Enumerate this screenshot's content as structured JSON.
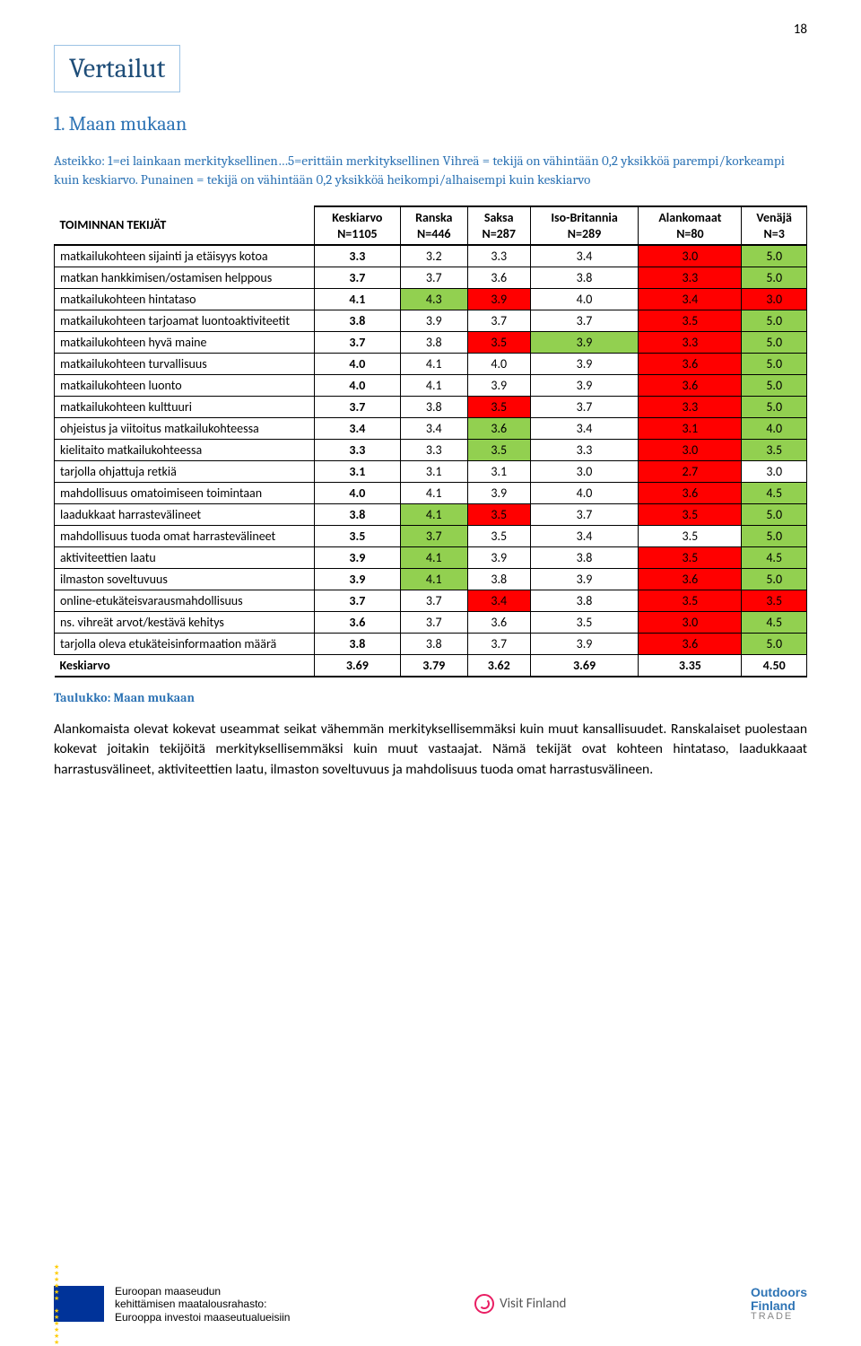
{
  "page_number": "18",
  "heading_boxed": "Vertailut",
  "subheading": "1. Maan mukaan",
  "scale_note": "Asteikko: 1=ei lainkaan merkityksellinen…5=erittäin merkityksellinen Vihreä = tekijä on vähintään 0,2 yksikköä parempi/korkeampi kuin keskiarvo. Punainen = tekijä on vähintään 0,2 yksikköä heikompi/alhaisempi kuin keskiarvo",
  "columns": [
    {
      "label_top": "TOIMINNAN TEKIJÄT",
      "label_bot": ""
    },
    {
      "label_top": "Keskiarvo",
      "label_bot": "N=1105"
    },
    {
      "label_top": "Ranska",
      "label_bot": "N=446"
    },
    {
      "label_top": "Saksa",
      "label_bot": "N=287"
    },
    {
      "label_top": "Iso-Britannia",
      "label_bot": "N=289"
    },
    {
      "label_top": "Alankomaat",
      "label_bot": "N=80"
    },
    {
      "label_top": "Venäjä",
      "label_bot": "N=3"
    }
  ],
  "colors": {
    "green": "#92d050",
    "red": "#ff0000",
    "plain": "#ffffff",
    "border": "#000000"
  },
  "rows": [
    {
      "label": "matkailukohteen sijainti ja etäisyys kotoa",
      "cells": [
        {
          "v": "3.3",
          "c": "plain"
        },
        {
          "v": "3.2",
          "c": "plain"
        },
        {
          "v": "3.3",
          "c": "plain"
        },
        {
          "v": "3.4",
          "c": "plain"
        },
        {
          "v": "3.0",
          "c": "red"
        },
        {
          "v": "5.0",
          "c": "green"
        }
      ]
    },
    {
      "label": "matkan hankkimisen/ostamisen helppous",
      "cells": [
        {
          "v": "3.7",
          "c": "plain"
        },
        {
          "v": "3.7",
          "c": "plain"
        },
        {
          "v": "3.6",
          "c": "plain"
        },
        {
          "v": "3.8",
          "c": "plain"
        },
        {
          "v": "3.3",
          "c": "red"
        },
        {
          "v": "5.0",
          "c": "green"
        }
      ]
    },
    {
      "label": "matkailukohteen hintataso",
      "cells": [
        {
          "v": "4.1",
          "c": "plain"
        },
        {
          "v": "4.3",
          "c": "green"
        },
        {
          "v": "3.9",
          "c": "red"
        },
        {
          "v": "4.0",
          "c": "plain"
        },
        {
          "v": "3.4",
          "c": "red"
        },
        {
          "v": "3.0",
          "c": "red"
        }
      ]
    },
    {
      "label": "matkailukohteen tarjoamat luontoaktiviteetit",
      "cells": [
        {
          "v": "3.8",
          "c": "plain"
        },
        {
          "v": "3.9",
          "c": "plain"
        },
        {
          "v": "3.7",
          "c": "plain"
        },
        {
          "v": "3.7",
          "c": "plain"
        },
        {
          "v": "3.5",
          "c": "red"
        },
        {
          "v": "5.0",
          "c": "green"
        }
      ]
    },
    {
      "label": "matkailukohteen hyvä maine",
      "cells": [
        {
          "v": "3.7",
          "c": "plain"
        },
        {
          "v": "3.8",
          "c": "plain"
        },
        {
          "v": "3.5",
          "c": "red"
        },
        {
          "v": "3.9",
          "c": "green"
        },
        {
          "v": "3.3",
          "c": "red"
        },
        {
          "v": "5.0",
          "c": "green"
        }
      ]
    },
    {
      "label": "matkailukohteen turvallisuus",
      "cells": [
        {
          "v": "4.0",
          "c": "plain"
        },
        {
          "v": "4.1",
          "c": "plain"
        },
        {
          "v": "4.0",
          "c": "plain"
        },
        {
          "v": "3.9",
          "c": "plain"
        },
        {
          "v": "3.6",
          "c": "red"
        },
        {
          "v": "5.0",
          "c": "green"
        }
      ]
    },
    {
      "label": "matkailukohteen luonto",
      "cells": [
        {
          "v": "4.0",
          "c": "plain"
        },
        {
          "v": "4.1",
          "c": "plain"
        },
        {
          "v": "3.9",
          "c": "plain"
        },
        {
          "v": "3.9",
          "c": "plain"
        },
        {
          "v": "3.6",
          "c": "red"
        },
        {
          "v": "5.0",
          "c": "green"
        }
      ]
    },
    {
      "label": "matkailukohteen kulttuuri",
      "cells": [
        {
          "v": "3.7",
          "c": "plain"
        },
        {
          "v": "3.8",
          "c": "plain"
        },
        {
          "v": "3.5",
          "c": "red"
        },
        {
          "v": "3.7",
          "c": "plain"
        },
        {
          "v": "3.3",
          "c": "red"
        },
        {
          "v": "5.0",
          "c": "green"
        }
      ]
    },
    {
      "label": "ohjeistus ja viitoitus matkailukohteessa",
      "cells": [
        {
          "v": "3.4",
          "c": "plain"
        },
        {
          "v": "3.4",
          "c": "plain"
        },
        {
          "v": "3.6",
          "c": "green"
        },
        {
          "v": "3.4",
          "c": "plain"
        },
        {
          "v": "3.1",
          "c": "red"
        },
        {
          "v": "4.0",
          "c": "green"
        }
      ]
    },
    {
      "label": "kielitaito matkailukohteessa",
      "cells": [
        {
          "v": "3.3",
          "c": "plain"
        },
        {
          "v": "3.3",
          "c": "plain"
        },
        {
          "v": "3.5",
          "c": "green"
        },
        {
          "v": "3.3",
          "c": "plain"
        },
        {
          "v": "3.0",
          "c": "red"
        },
        {
          "v": "3.5",
          "c": "green"
        }
      ]
    },
    {
      "label": "tarjolla ohjattuja retkiä",
      "cells": [
        {
          "v": "3.1",
          "c": "plain"
        },
        {
          "v": "3.1",
          "c": "plain"
        },
        {
          "v": "3.1",
          "c": "plain"
        },
        {
          "v": "3.0",
          "c": "plain"
        },
        {
          "v": "2.7",
          "c": "red"
        },
        {
          "v": "3.0",
          "c": "plain"
        }
      ]
    },
    {
      "label": "mahdollisuus omatoimiseen toimintaan",
      "cells": [
        {
          "v": "4.0",
          "c": "plain"
        },
        {
          "v": "4.1",
          "c": "plain"
        },
        {
          "v": "3.9",
          "c": "plain"
        },
        {
          "v": "4.0",
          "c": "plain"
        },
        {
          "v": "3.6",
          "c": "red"
        },
        {
          "v": "4.5",
          "c": "green"
        }
      ]
    },
    {
      "label": "laadukkaat harrastevälineet",
      "cells": [
        {
          "v": "3.8",
          "c": "plain"
        },
        {
          "v": "4.1",
          "c": "green"
        },
        {
          "v": "3.5",
          "c": "red"
        },
        {
          "v": "3.7",
          "c": "plain"
        },
        {
          "v": "3.5",
          "c": "red"
        },
        {
          "v": "5.0",
          "c": "green"
        }
      ]
    },
    {
      "label": "mahdollisuus tuoda omat harrastevälineet",
      "cells": [
        {
          "v": "3.5",
          "c": "plain"
        },
        {
          "v": "3.7",
          "c": "green"
        },
        {
          "v": "3.5",
          "c": "plain"
        },
        {
          "v": "3.4",
          "c": "plain"
        },
        {
          "v": "3.5",
          "c": "plain"
        },
        {
          "v": "5.0",
          "c": "green"
        }
      ]
    },
    {
      "label": "aktiviteettien laatu",
      "cells": [
        {
          "v": "3.9",
          "c": "plain"
        },
        {
          "v": "4.1",
          "c": "green"
        },
        {
          "v": "3.9",
          "c": "plain"
        },
        {
          "v": "3.8",
          "c": "plain"
        },
        {
          "v": "3.5",
          "c": "red"
        },
        {
          "v": "4.5",
          "c": "green"
        }
      ]
    },
    {
      "label": "ilmaston soveltuvuus",
      "cells": [
        {
          "v": "3.9",
          "c": "plain"
        },
        {
          "v": "4.1",
          "c": "green"
        },
        {
          "v": "3.8",
          "c": "plain"
        },
        {
          "v": "3.9",
          "c": "plain"
        },
        {
          "v": "3.6",
          "c": "red"
        },
        {
          "v": "5.0",
          "c": "green"
        }
      ]
    },
    {
      "label": "online-etukäteisvarausmahdollisuus",
      "cells": [
        {
          "v": "3.7",
          "c": "plain"
        },
        {
          "v": "3.7",
          "c": "plain"
        },
        {
          "v": "3.4",
          "c": "red"
        },
        {
          "v": "3.8",
          "c": "plain"
        },
        {
          "v": "3.5",
          "c": "red"
        },
        {
          "v": "3.5",
          "c": "red"
        }
      ]
    },
    {
      "label": "ns. vihreät arvot/kestävä kehitys",
      "cells": [
        {
          "v": "3.6",
          "c": "plain"
        },
        {
          "v": "3.7",
          "c": "plain"
        },
        {
          "v": "3.6",
          "c": "plain"
        },
        {
          "v": "3.5",
          "c": "plain"
        },
        {
          "v": "3.0",
          "c": "red"
        },
        {
          "v": "4.5",
          "c": "green"
        }
      ]
    },
    {
      "label": "tarjolla oleva etukäteisinformaation määrä",
      "cells": [
        {
          "v": "3.8",
          "c": "plain"
        },
        {
          "v": "3.8",
          "c": "plain"
        },
        {
          "v": "3.7",
          "c": "plain"
        },
        {
          "v": "3.9",
          "c": "plain"
        },
        {
          "v": "3.6",
          "c": "red"
        },
        {
          "v": "5.0",
          "c": "green"
        }
      ]
    }
  ],
  "footer_row": {
    "label": "Keskiarvo",
    "cells": [
      "3.69",
      "3.79",
      "3.62",
      "3.69",
      "3.35",
      "4.50"
    ]
  },
  "caption": "Taulukko: Maan mukaan",
  "paragraph": "Alankomaista olevat kokevat useammat seikat vähemmän merkityksellisemmäksi kuin muut kansallisuudet. Ranskalaiset puolestaan kokevat joitakin tekijöitä merkityksellisemmäksi kuin muut vastaajat. Nämä tekijät ovat kohteen hintataso, laadukkaaat harrastusvälineet, aktiviteettien laatu, ilmaston soveltuvuus ja mahdolisuus tuoda omat harrastusvälineen.",
  "footer_eu_lines": [
    "Euroopan maaseudun",
    "kehittämisen maatalousrahasto:",
    "Eurooppa investoi maaseutualueisiin"
  ],
  "footer_vf": "Visit Finland",
  "footer_oft_top": "Outdoors",
  "footer_oft_mid": "Finland",
  "footer_oft_bot": "TRADE"
}
